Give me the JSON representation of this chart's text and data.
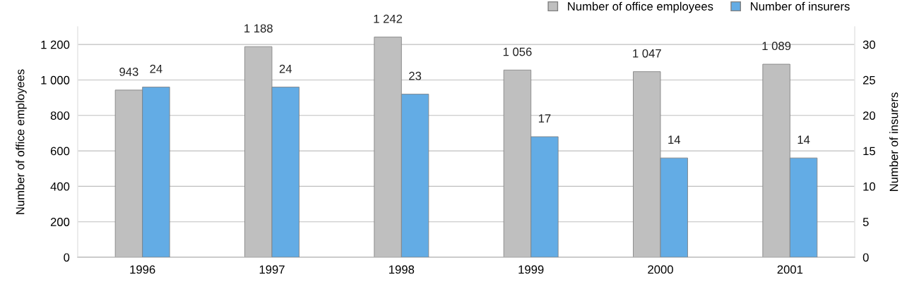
{
  "chart_data": {
    "type": "bar",
    "categories": [
      "1996",
      "1997",
      "1998",
      "1999",
      "2000",
      "2001"
    ],
    "series": [
      {
        "name": "Number of office employees",
        "color": "#bfbfbf",
        "values": [
          943,
          1188,
          1242,
          1056,
          1047,
          1089
        ],
        "value_labels": [
          "943",
          "1 188",
          "1 242",
          "1 056",
          "1 047",
          "1 089"
        ]
      },
      {
        "name": "Number of insurers",
        "color": "#63ace5",
        "axis": "y2",
        "values": [
          24,
          24,
          23,
          17,
          14,
          14
        ],
        "value_labels": [
          "24",
          "24",
          "23",
          "17",
          "14",
          "14"
        ]
      }
    ],
    "ylabel": "Number of office employees",
    "y2label": "Number of insurers",
    "ylim": [
      0,
      1300
    ],
    "yticks": [
      {
        "value": 0,
        "label": "0"
      },
      {
        "value": 200,
        "label": "200"
      },
      {
        "value": 400,
        "label": "400"
      },
      {
        "value": 600,
        "label": "600"
      },
      {
        "value": 800,
        "label": "800"
      },
      {
        "value": 1000,
        "label": "1 000"
      },
      {
        "value": 1200,
        "label": "1 200"
      }
    ],
    "y2lim": [
      0,
      32.5
    ],
    "y2ticks": [
      0,
      5,
      10,
      15,
      20,
      25,
      30
    ],
    "grid": "y",
    "legend": "top right"
  }
}
